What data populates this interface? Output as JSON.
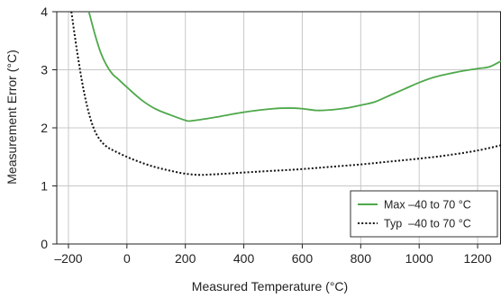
{
  "chart_data": {
    "type": "line",
    "title": "",
    "xlabel": "Measured Temperature (°C)",
    "ylabel": "Measurement Error (°C)",
    "xlim": [
      -240,
      1280
    ],
    "ylim": [
      0,
      4
    ],
    "x_ticks": [
      -200,
      0,
      200,
      400,
      600,
      800,
      1000,
      1200
    ],
    "x_tick_labels": [
      "–200",
      "0",
      "200",
      "400",
      "600",
      "800",
      "1000",
      "1200"
    ],
    "y_ticks": [
      0,
      1,
      2,
      3,
      4
    ],
    "y_tick_labels": [
      "0",
      "1",
      "2",
      "3",
      "4"
    ],
    "grid": true,
    "legend_position": "bottom-right",
    "series": [
      {
        "name": "Max –40 to 70 °C",
        "color": "#4ea84a",
        "style": "solid",
        "x": [
          -130,
          -110,
          -90,
          -70,
          -50,
          -30,
          0,
          50,
          100,
          150,
          200,
          220,
          300,
          400,
          500,
          560,
          600,
          650,
          700,
          750,
          800,
          850,
          900,
          950,
          1000,
          1050,
          1100,
          1150,
          1200,
          1240,
          1280
        ],
        "y": [
          4.0,
          3.62,
          3.3,
          3.08,
          2.93,
          2.84,
          2.7,
          2.48,
          2.32,
          2.22,
          2.13,
          2.12,
          2.18,
          2.27,
          2.33,
          2.34,
          2.33,
          2.3,
          2.31,
          2.34,
          2.39,
          2.45,
          2.56,
          2.67,
          2.78,
          2.87,
          2.93,
          2.98,
          3.02,
          3.05,
          3.15
        ]
      },
      {
        "name": "Typ  –40 to 70 °C",
        "color": "#111111",
        "style": "dotted",
        "x": [
          -190,
          -170,
          -150,
          -130,
          -110,
          -90,
          -70,
          -50,
          0,
          50,
          100,
          150,
          200,
          250,
          300,
          400,
          500,
          600,
          700,
          800,
          900,
          1000,
          1100,
          1200,
          1280
        ],
        "y": [
          4.0,
          3.3,
          2.7,
          2.25,
          1.95,
          1.78,
          1.68,
          1.62,
          1.5,
          1.4,
          1.32,
          1.26,
          1.21,
          1.19,
          1.2,
          1.23,
          1.26,
          1.29,
          1.33,
          1.37,
          1.42,
          1.47,
          1.53,
          1.61,
          1.7
        ]
      }
    ]
  }
}
